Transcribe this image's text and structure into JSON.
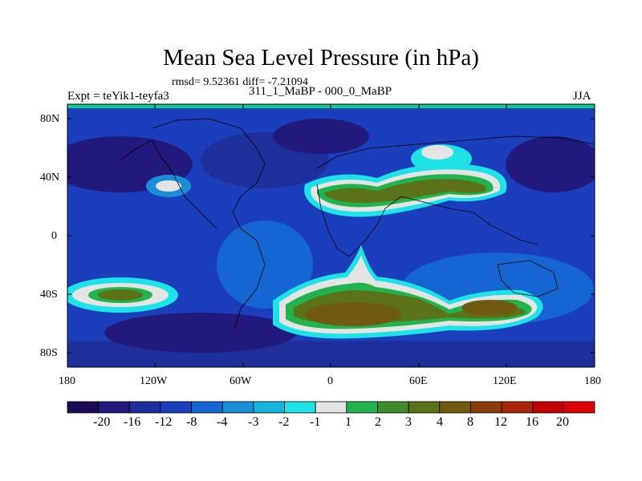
{
  "title": "Mean Sea Level Pressure (in hPa)",
  "stats": "rmsd= 9.52361 diff= -7.21094",
  "left_label": "Expt = teYik1-teyfa3",
  "center_label": "311_1_MaBP - 000_0_MaBP",
  "right_label": "JJA",
  "lat_labels": [
    "80N",
    "40N",
    "0",
    "40S",
    "80S"
  ],
  "lon_labels": [
    "180",
    "120W",
    "60W",
    "0",
    "60E",
    "120E",
    "180"
  ],
  "colorbar": {
    "levels": [
      "-20",
      "-16",
      "-12",
      "-8",
      "-4",
      "-3",
      "-2",
      "-1",
      "1",
      "2",
      "3",
      "4",
      "8",
      "12",
      "16",
      "20"
    ],
    "colors": [
      "#1c0a55",
      "#211a7c",
      "#1e2e9a",
      "#1b3ebd",
      "#1566d0",
      "#1a8fd8",
      "#16b6dc",
      "#1ee2e6",
      "#e4e4e4",
      "#22b24e",
      "#3f8c2c",
      "#5a7218",
      "#6f5a10",
      "#8a3c08",
      "#a8240a",
      "#c00000",
      "#e00000"
    ]
  },
  "map_colors": {
    "ocean": "#1b3ebd",
    "deep": "#211a7c",
    "deeper": "#1e2e9a",
    "mid": "#1566d0",
    "light": "#1a8fd8",
    "cyan": "#1ee2e6",
    "white": "#e4e4e4",
    "green": "#22b24e",
    "olive": "#5a7218",
    "brown": "#6f5a10",
    "teal_top": "#18c88a"
  }
}
